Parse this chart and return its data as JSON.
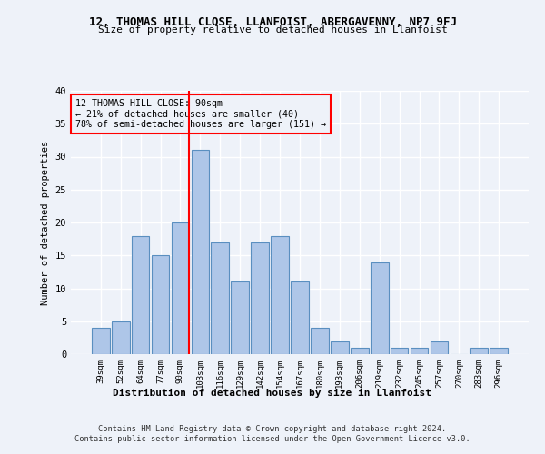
{
  "title_line1": "12, THOMAS HILL CLOSE, LLANFOIST, ABERGAVENNY, NP7 9FJ",
  "title_line2": "Size of property relative to detached houses in Llanfoist",
  "xlabel": "Distribution of detached houses by size in Llanfoist",
  "ylabel": "Number of detached properties",
  "categories": [
    "39sqm",
    "52sqm",
    "64sqm",
    "77sqm",
    "90sqm",
    "103sqm",
    "116sqm",
    "129sqm",
    "142sqm",
    "154sqm",
    "167sqm",
    "180sqm",
    "193sqm",
    "206sqm",
    "219sqm",
    "232sqm",
    "245sqm",
    "257sqm",
    "270sqm",
    "283sqm",
    "296sqm"
  ],
  "values": [
    4,
    5,
    18,
    15,
    20,
    31,
    17,
    11,
    17,
    18,
    11,
    4,
    2,
    1,
    14,
    1,
    1,
    2,
    0,
    1,
    1
  ],
  "bar_color": "#aec6e8",
  "bar_edge_color": "#5a8fc0",
  "red_line_index": 4,
  "annotation_text": "12 THOMAS HILL CLOSE: 90sqm\n← 21% of detached houses are smaller (40)\n78% of semi-detached houses are larger (151) →",
  "ylim": [
    0,
    40
  ],
  "yticks": [
    0,
    5,
    10,
    15,
    20,
    25,
    30,
    35,
    40
  ],
  "footer_line1": "Contains HM Land Registry data © Crown copyright and database right 2024.",
  "footer_line2": "Contains public sector information licensed under the Open Government Licence v3.0.",
  "background_color": "#eef2f9",
  "grid_color": "#ffffff"
}
